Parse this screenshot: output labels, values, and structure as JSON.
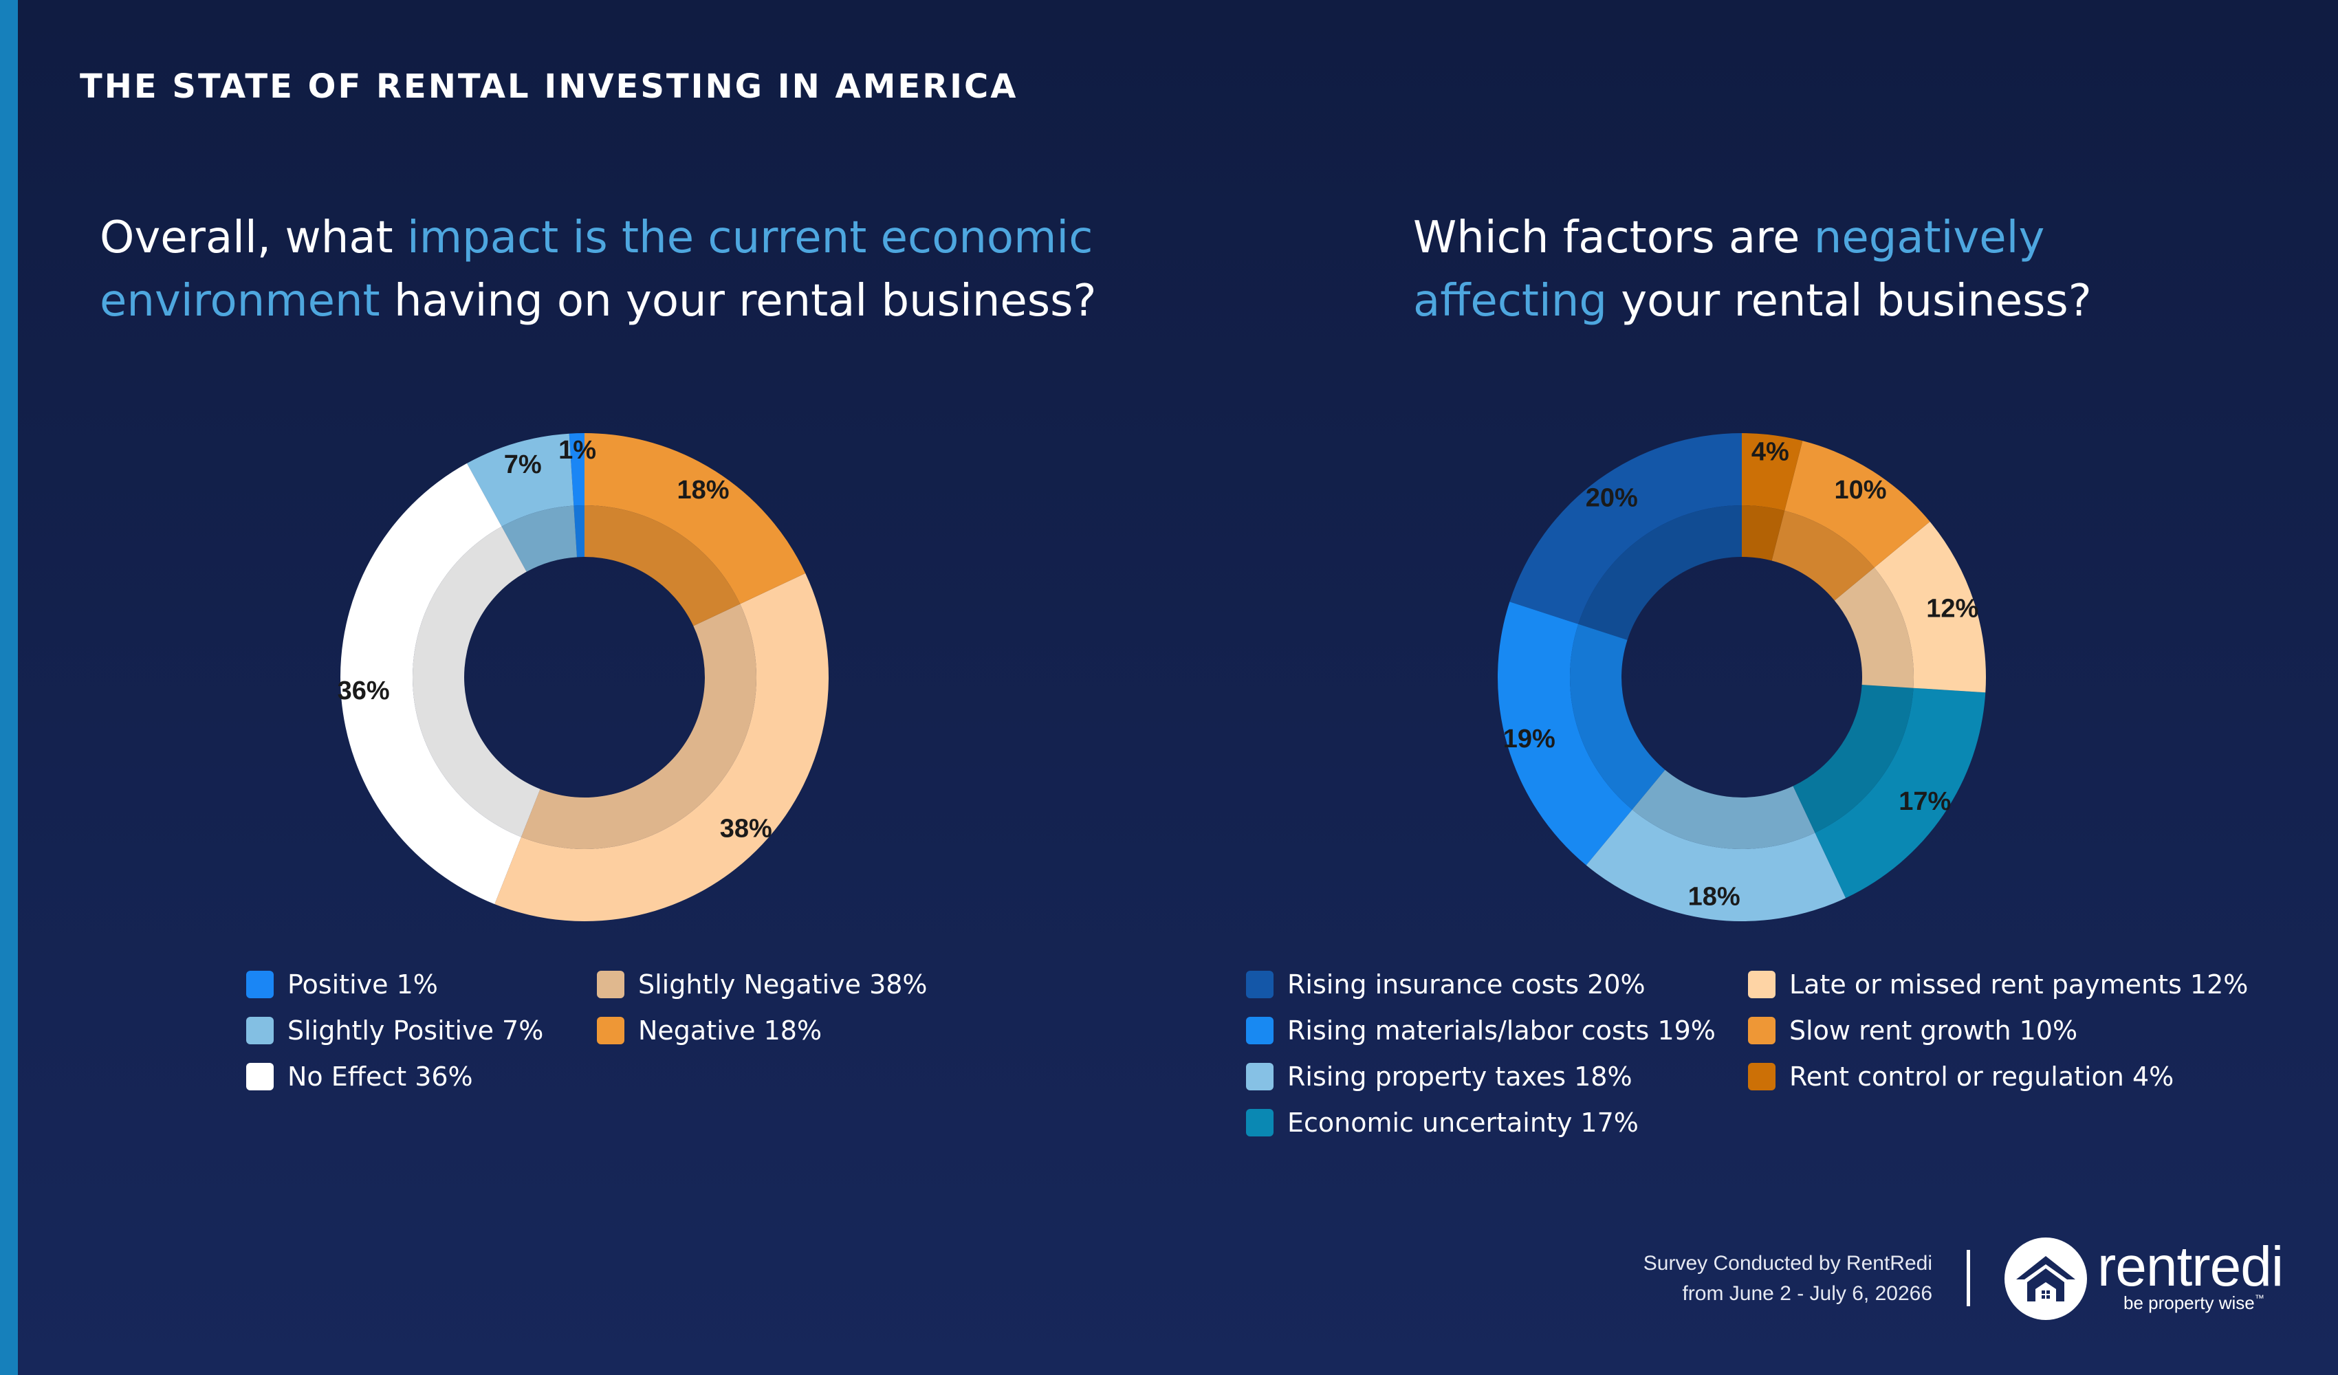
{
  "header": {
    "title": "THE STATE OF RENTAL INVESTING IN AMERICA"
  },
  "questions": [
    {
      "before": "Overall, what ",
      "highlight": "impact is the current economic",
      "line2_highlight": "environment",
      "after": " having on your rental business?"
    },
    {
      "before": "Which factors are ",
      "highlight": "negatively",
      "line2_highlight": "affecting",
      "after": " your rental business?"
    }
  ],
  "chart_data": [
    {
      "type": "pie",
      "variant": "donut",
      "title": "Overall, what impact is the current economic environment having on your rental business?",
      "categories": [
        "Positive",
        "Slightly Positive",
        "No Effect",
        "Slightly Negative",
        "Negative"
      ],
      "values": [
        1,
        7,
        36,
        38,
        18
      ],
      "labels": [
        "1%",
        "7%",
        "36%",
        "38%",
        "18%"
      ],
      "colors": [
        "#1a86f5",
        "#83bfe3",
        "#ffffff",
        "#fdcfa0",
        "#ee9736"
      ],
      "legend_colors": [
        "#1a86f5",
        "#83bfe3",
        "#ffffff",
        "#e0b88e",
        "#ee9736"
      ],
      "legend": [
        "Positive 1%",
        "Slightly Positive 7%",
        "No Effect 36%",
        "Slightly Negative 38%",
        "Negative 18%"
      ],
      "legend_position": "bottom"
    },
    {
      "type": "pie",
      "variant": "donut",
      "title": "Which factors are negatively affecting your rental business?",
      "categories": [
        "Rising insurance costs",
        "Rising materials/labor costs",
        "Rising property taxes",
        "Economic uncertainty",
        "Late or missed rent payments",
        "Slow rent growth",
        "Rent control or regulation"
      ],
      "values": [
        20,
        19,
        18,
        17,
        12,
        10,
        4
      ],
      "labels": [
        "20%",
        "19%",
        "18%",
        "17%",
        "12%",
        "10%",
        "4%"
      ],
      "colors": [
        "#1457a8",
        "#1889f2",
        "#86c1e5",
        "#0a88b3",
        "#fed4a5",
        "#ee9736",
        "#cc7006"
      ],
      "legend_colors": [
        "#1457a8",
        "#1889f2",
        "#86c1e5",
        "#0a88b3",
        "#fed4a5",
        "#ee9736",
        "#cc7006"
      ],
      "legend": [
        "Rising insurance costs 20%",
        "Rising materials/labor costs 19%",
        "Rising property taxes 18%",
        "Economic uncertainty 17%",
        "Late or missed rent payments 12%",
        "Slow rent growth 10%",
        "Rent control or regulation 4%"
      ],
      "legend_position": "bottom"
    }
  ],
  "footer": {
    "line1": "Survey Conducted by RentRedi",
    "line2": "from June 2 - July 6, 20266"
  },
  "brand": {
    "name": "rentredi",
    "tagline": "be property wise",
    "tm": "™",
    "logo_icon": "house-circle-icon"
  }
}
